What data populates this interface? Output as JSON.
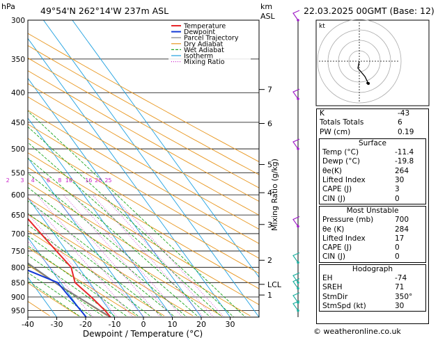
{
  "header": {
    "hpa_label": "hPa",
    "location": "49°54'N  262°14'W  237m  ASL",
    "km_label": "km",
    "asl_label": "ASL",
    "datetime": "22.03.2025  00GMT  (Base: 12)"
  },
  "chart_data": {
    "type": "skew-t",
    "xlabel": "Dewpoint / Temperature (°C)",
    "ylabel": "Mixing Ratio (g/kg)",
    "x_ticks": [
      -40,
      -30,
      -20,
      -10,
      0,
      10,
      20,
      30
    ],
    "pressure_ticks": [
      300,
      350,
      400,
      450,
      500,
      550,
      600,
      650,
      700,
      750,
      800,
      850,
      900,
      950
    ],
    "xlim": [
      -40,
      40
    ],
    "plim": [
      300,
      975
    ],
    "km_ticks": [
      {
        "label": "7",
        "p": 395
      },
      {
        "label": "6",
        "p": 452
      },
      {
        "label": "5",
        "p": 532
      },
      {
        "label": "4",
        "p": 595
      },
      {
        "label": "3",
        "p": 675
      },
      {
        "label": "2",
        "p": 778
      },
      {
        "label": "LCL",
        "p": 856
      },
      {
        "label": "1",
        "p": 893
      }
    ],
    "mixing_ratio_labels": [
      "1",
      "2",
      "3",
      "4",
      "6",
      "8",
      "10",
      "16",
      "20",
      "25"
    ],
    "mixing_ratio_values": [
      1,
      2,
      3,
      4,
      6,
      8,
      10,
      16,
      20,
      25
    ],
    "legend": [
      {
        "name": "Temperature",
        "color": "#e8262a"
      },
      {
        "name": "Dewpoint",
        "color": "#1238d6"
      },
      {
        "name": "Parcel Trajectory",
        "color": "#808080"
      },
      {
        "name": "Dry Adiabat",
        "color": "#e8961e"
      },
      {
        "name": "Wet Adiabat",
        "color": "#1ea51e"
      },
      {
        "name": "Isotherm",
        "color": "#1ea0e0"
      },
      {
        "name": "Mixing Ratio",
        "color": "#c81ec8"
      }
    ],
    "temperature": [
      {
        "p": 300,
        "t": -52
      },
      {
        "p": 350,
        "t": -46
      },
      {
        "p": 400,
        "t": -39
      },
      {
        "p": 450,
        "t": -32
      },
      {
        "p": 500,
        "t": -26
      },
      {
        "p": 550,
        "t": -22
      },
      {
        "p": 600,
        "t": -18
      },
      {
        "p": 650,
        "t": -15.5
      },
      {
        "p": 700,
        "t": -14.5
      },
      {
        "p": 750,
        "t": -13.5
      },
      {
        "p": 800,
        "t": -12.5
      },
      {
        "p": 850,
        "t": -15
      },
      {
        "p": 900,
        "t": -13
      },
      {
        "p": 950,
        "t": -11.6
      },
      {
        "p": 975,
        "t": -11.4
      }
    ],
    "dewpoint": [
      {
        "p": 300,
        "t": -67
      },
      {
        "p": 350,
        "t": -63
      },
      {
        "p": 400,
        "t": -58
      },
      {
        "p": 450,
        "t": -52
      },
      {
        "p": 500,
        "t": -51
      },
      {
        "p": 550,
        "t": -50
      },
      {
        "p": 600,
        "t": -47
      },
      {
        "p": 650,
        "t": -44
      },
      {
        "p": 700,
        "t": -41
      },
      {
        "p": 750,
        "t": -35
      },
      {
        "p": 800,
        "t": -30
      },
      {
        "p": 850,
        "t": -21
      },
      {
        "p": 900,
        "t": -20.5
      },
      {
        "p": 950,
        "t": -20
      },
      {
        "p": 975,
        "t": -19.8
      }
    ],
    "parcel": [
      {
        "p": 975,
        "t": -11.4
      },
      {
        "p": 856,
        "t": -21.5
      },
      {
        "p": 800,
        "t": -25.5
      },
      {
        "p": 700,
        "t": -33
      },
      {
        "p": 600,
        "t": -42
      },
      {
        "p": 500,
        "t": -53
      }
    ]
  },
  "hodograph": {
    "label": "kt"
  },
  "indices": [
    {
      "label": "K",
      "value": "-43"
    },
    {
      "label": "Totals Totals",
      "value": "6"
    },
    {
      "label": "PW (cm)",
      "value": "0.19"
    }
  ],
  "surface": {
    "title": "Surface",
    "rows": [
      {
        "label": "Temp (°C)",
        "value": "-11.4"
      },
      {
        "label": "Dewp (°C)",
        "value": "-19.8"
      },
      {
        "label": "θe(K)",
        "value": "264"
      },
      {
        "label": "Lifted Index",
        "value": "30"
      },
      {
        "label": "CAPE (J)",
        "value": "3"
      },
      {
        "label": "CIN (J)",
        "value": "0"
      }
    ]
  },
  "most_unstable": {
    "title": "Most Unstable",
    "rows": [
      {
        "label": "Pressure (mb)",
        "value": "700"
      },
      {
        "label": "θe (K)",
        "value": "284"
      },
      {
        "label": "Lifted Index",
        "value": "17"
      },
      {
        "label": "CAPE (J)",
        "value": "0"
      },
      {
        "label": "CIN (J)",
        "value": "0"
      }
    ]
  },
  "hodograph_table": {
    "title": "Hodograph",
    "rows": [
      {
        "label": "EH",
        "value": "-74"
      },
      {
        "label": "SREH",
        "value": "71"
      },
      {
        "label": "StmDir",
        "value": "350°"
      },
      {
        "label": "StmSpd (kt)",
        "value": "30"
      }
    ]
  },
  "credit": "© weatheronline.co.uk"
}
